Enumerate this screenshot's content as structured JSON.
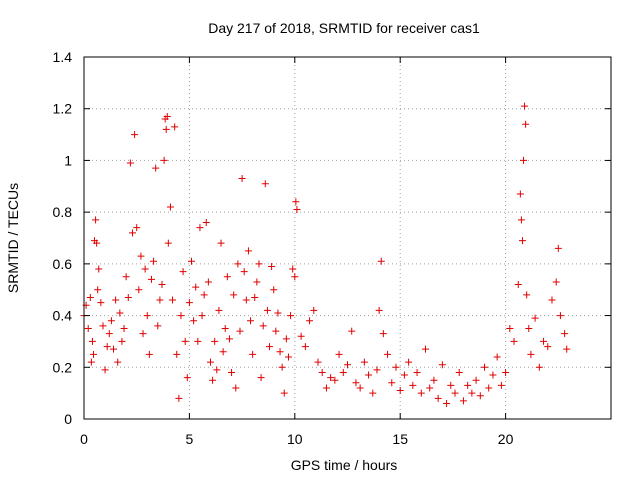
{
  "chart_data": {
    "type": "scatter",
    "title": "Day 217 of 2018, SRMTID for receiver cas1",
    "xlabel": "GPS time / hours",
    "ylabel": "SRMTID / TECUs",
    "xlim": [
      0,
      25
    ],
    "ylim": [
      0,
      1.4
    ],
    "x_ticks": [
      0,
      5,
      10,
      15,
      20
    ],
    "y_ticks": [
      0,
      0.2,
      0.4,
      0.6,
      0.8,
      1,
      1.2,
      1.4
    ],
    "x_tick_labels": [
      "0",
      "5",
      "10",
      "15",
      "20"
    ],
    "y_tick_labels": [
      "0",
      "0.2",
      "0.4",
      "0.6",
      "0.8",
      "1",
      "1.2",
      "1.4"
    ],
    "grid": true,
    "marker": "plus",
    "marker_color": "#e00000",
    "series": [
      {
        "name": "cas1",
        "points": [
          [
            0.0,
            0.4
          ],
          [
            0.1,
            0.44
          ],
          [
            0.2,
            0.35
          ],
          [
            0.3,
            0.47
          ],
          [
            0.35,
            0.22
          ],
          [
            0.4,
            0.3
          ],
          [
            0.45,
            0.25
          ],
          [
            0.5,
            0.69
          ],
          [
            0.55,
            0.77
          ],
          [
            0.6,
            0.68
          ],
          [
            0.65,
            0.5
          ],
          [
            0.7,
            0.58
          ],
          [
            0.8,
            0.45
          ],
          [
            0.9,
            0.36
          ],
          [
            1.0,
            0.19
          ],
          [
            1.1,
            0.28
          ],
          [
            1.2,
            0.33
          ],
          [
            1.3,
            0.38
          ],
          [
            1.4,
            0.27
          ],
          [
            1.5,
            0.46
          ],
          [
            1.6,
            0.22
          ],
          [
            1.7,
            0.41
          ],
          [
            1.8,
            0.3
          ],
          [
            1.9,
            0.35
          ],
          [
            2.0,
            0.55
          ],
          [
            2.1,
            0.47
          ],
          [
            2.2,
            0.99
          ],
          [
            2.3,
            0.72
          ],
          [
            2.4,
            1.1
          ],
          [
            2.5,
            0.74
          ],
          [
            2.6,
            0.5
          ],
          [
            2.7,
            0.63
          ],
          [
            2.8,
            0.33
          ],
          [
            2.9,
            0.58
          ],
          [
            3.0,
            0.4
          ],
          [
            3.1,
            0.25
          ],
          [
            3.2,
            0.54
          ],
          [
            3.3,
            0.61
          ],
          [
            3.4,
            0.97
          ],
          [
            3.5,
            0.36
          ],
          [
            3.6,
            0.46
          ],
          [
            3.7,
            0.52
          ],
          [
            3.8,
            1.0
          ],
          [
            3.85,
            1.16
          ],
          [
            3.9,
            1.12
          ],
          [
            3.95,
            1.17
          ],
          [
            4.0,
            0.68
          ],
          [
            4.1,
            0.82
          ],
          [
            4.2,
            0.46
          ],
          [
            4.3,
            1.13
          ],
          [
            4.4,
            0.25
          ],
          [
            4.5,
            0.08
          ],
          [
            4.6,
            0.4
          ],
          [
            4.7,
            0.57
          ],
          [
            4.8,
            0.3
          ],
          [
            4.9,
            0.16
          ],
          [
            5.0,
            0.45
          ],
          [
            5.1,
            0.61
          ],
          [
            5.2,
            0.38
          ],
          [
            5.3,
            0.51
          ],
          [
            5.4,
            0.3
          ],
          [
            5.5,
            0.74
          ],
          [
            5.6,
            0.4
          ],
          [
            5.7,
            0.48
          ],
          [
            5.8,
            0.76
          ],
          [
            5.9,
            0.53
          ],
          [
            6.0,
            0.22
          ],
          [
            6.1,
            0.15
          ],
          [
            6.2,
            0.3
          ],
          [
            6.3,
            0.19
          ],
          [
            6.4,
            0.42
          ],
          [
            6.5,
            0.68
          ],
          [
            6.6,
            0.26
          ],
          [
            6.7,
            0.35
          ],
          [
            6.8,
            0.55
          ],
          [
            6.9,
            0.31
          ],
          [
            7.0,
            0.18
          ],
          [
            7.1,
            0.48
          ],
          [
            7.2,
            0.12
          ],
          [
            7.3,
            0.6
          ],
          [
            7.4,
            0.34
          ],
          [
            7.5,
            0.93
          ],
          [
            7.6,
            0.57
          ],
          [
            7.7,
            0.46
          ],
          [
            7.8,
            0.65
          ],
          [
            7.9,
            0.38
          ],
          [
            8.0,
            0.25
          ],
          [
            8.1,
            0.47
          ],
          [
            8.2,
            0.53
          ],
          [
            8.3,
            0.6
          ],
          [
            8.4,
            0.16
          ],
          [
            8.5,
            0.36
          ],
          [
            8.6,
            0.91
          ],
          [
            8.7,
            0.42
          ],
          [
            8.8,
            0.28
          ],
          [
            8.9,
            0.59
          ],
          [
            9.0,
            0.5
          ],
          [
            9.1,
            0.34
          ],
          [
            9.2,
            0.41
          ],
          [
            9.3,
            0.26
          ],
          [
            9.4,
            0.2
          ],
          [
            9.5,
            0.1
          ],
          [
            9.6,
            0.31
          ],
          [
            9.7,
            0.24
          ],
          [
            9.8,
            0.4
          ],
          [
            9.9,
            0.58
          ],
          [
            10.0,
            0.55
          ],
          [
            10.05,
            0.84
          ],
          [
            10.1,
            0.81
          ],
          [
            10.3,
            0.32
          ],
          [
            10.5,
            0.28
          ],
          [
            10.7,
            0.38
          ],
          [
            10.9,
            0.42
          ],
          [
            11.1,
            0.22
          ],
          [
            11.3,
            0.18
          ],
          [
            11.5,
            0.12
          ],
          [
            11.7,
            0.16
          ],
          [
            11.9,
            0.15
          ],
          [
            12.1,
            0.25
          ],
          [
            12.3,
            0.18
          ],
          [
            12.5,
            0.21
          ],
          [
            12.7,
            0.34
          ],
          [
            12.9,
            0.14
          ],
          [
            13.1,
            0.12
          ],
          [
            13.3,
            0.22
          ],
          [
            13.5,
            0.17
          ],
          [
            13.7,
            0.1
          ],
          [
            13.9,
            0.19
          ],
          [
            14.0,
            0.42
          ],
          [
            14.1,
            0.61
          ],
          [
            14.2,
            0.33
          ],
          [
            14.4,
            0.25
          ],
          [
            14.6,
            0.14
          ],
          [
            14.8,
            0.2
          ],
          [
            15.0,
            0.11
          ],
          [
            15.2,
            0.17
          ],
          [
            15.4,
            0.22
          ],
          [
            15.6,
            0.13
          ],
          [
            15.8,
            0.18
          ],
          [
            16.0,
            0.1
          ],
          [
            16.2,
            0.27
          ],
          [
            16.4,
            0.12
          ],
          [
            16.6,
            0.15
          ],
          [
            16.8,
            0.08
          ],
          [
            17.0,
            0.21
          ],
          [
            17.2,
            0.06
          ],
          [
            17.4,
            0.13
          ],
          [
            17.6,
            0.1
          ],
          [
            17.8,
            0.18
          ],
          [
            18.0,
            0.07
          ],
          [
            18.2,
            0.13
          ],
          [
            18.4,
            0.1
          ],
          [
            18.6,
            0.15
          ],
          [
            18.8,
            0.09
          ],
          [
            19.0,
            0.2
          ],
          [
            19.2,
            0.12
          ],
          [
            19.4,
            0.17
          ],
          [
            19.6,
            0.24
          ],
          [
            19.8,
            0.13
          ],
          [
            20.0,
            0.18
          ],
          [
            20.2,
            0.35
          ],
          [
            20.4,
            0.3
          ],
          [
            20.6,
            0.52
          ],
          [
            20.7,
            0.87
          ],
          [
            20.75,
            0.77
          ],
          [
            20.8,
            0.69
          ],
          [
            20.85,
            1.0
          ],
          [
            20.9,
            1.21
          ],
          [
            20.95,
            1.14
          ],
          [
            21.0,
            0.48
          ],
          [
            21.1,
            0.35
          ],
          [
            21.2,
            0.25
          ],
          [
            21.4,
            0.39
          ],
          [
            21.6,
            0.2
          ],
          [
            21.8,
            0.3
          ],
          [
            22.0,
            0.28
          ],
          [
            22.2,
            0.46
          ],
          [
            22.4,
            0.53
          ],
          [
            22.5,
            0.66
          ],
          [
            22.6,
            0.4
          ],
          [
            22.8,
            0.33
          ],
          [
            22.9,
            0.27
          ]
        ]
      }
    ]
  }
}
